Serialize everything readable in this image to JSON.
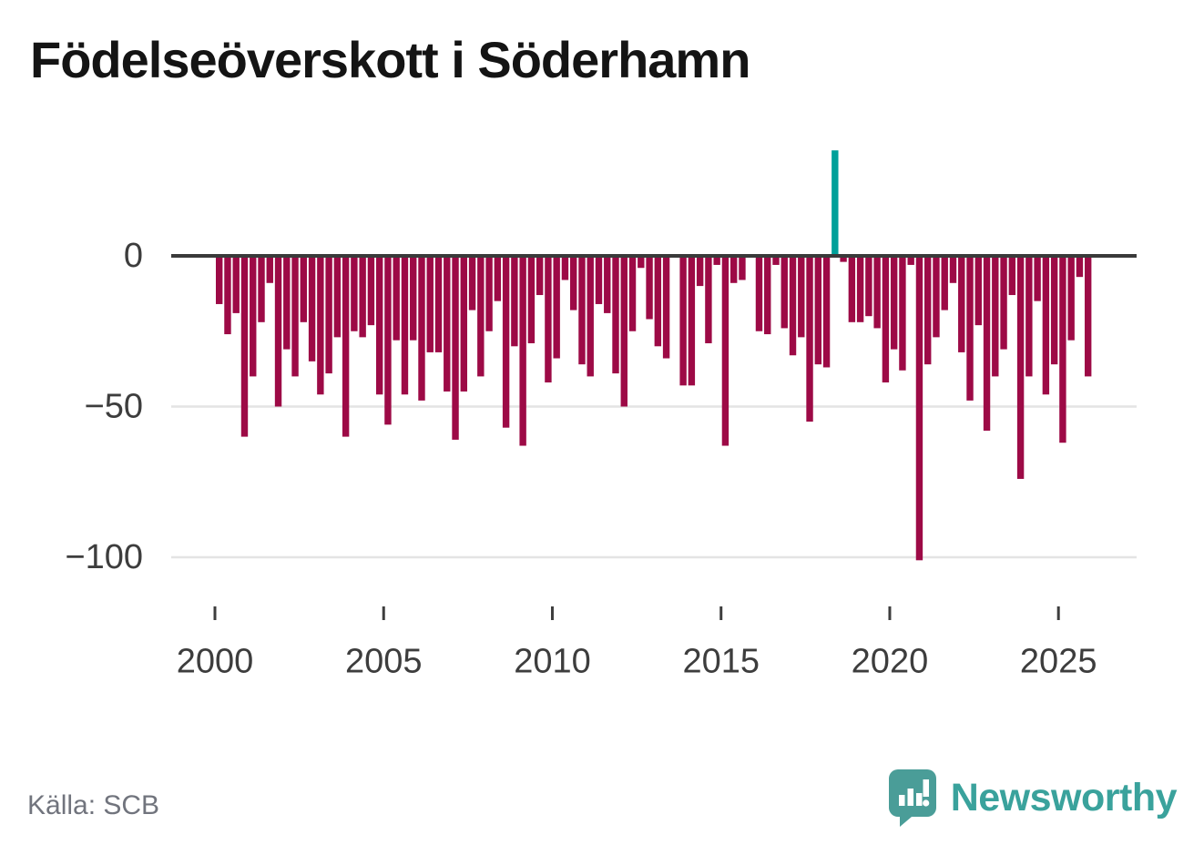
{
  "title": "Födelseöverskott i Söderhamn",
  "footer": {
    "source": "Källa: SCB",
    "brand": "Newsworthy"
  },
  "colors": {
    "bar_negative": "#9d0a46",
    "bar_positive": "#00a099",
    "axis_line": "#3a3a3a",
    "grid_line": "#e4e4e4",
    "tick_text": "#3d3d3d",
    "title_text": "#141414",
    "source_text": "#71747d",
    "brand_teal": "#3aa29c",
    "logo_teal": "#4a9d98"
  },
  "chart_data": {
    "type": "bar",
    "title": "Födelseöverskott i Söderhamn",
    "xlabel": "",
    "ylabel": "",
    "x_unit": "quarter",
    "ylim": [
      -110,
      40
    ],
    "grid": "horizontal",
    "legend": "none",
    "categories": [
      "2000Q1",
      "2000Q2",
      "2000Q3",
      "2000Q4",
      "2001Q1",
      "2001Q2",
      "2001Q3",
      "2001Q4",
      "2002Q1",
      "2002Q2",
      "2002Q3",
      "2002Q4",
      "2003Q1",
      "2003Q2",
      "2003Q3",
      "2003Q4",
      "2004Q1",
      "2004Q2",
      "2004Q3",
      "2004Q4",
      "2005Q1",
      "2005Q2",
      "2005Q3",
      "2005Q4",
      "2006Q1",
      "2006Q2",
      "2006Q3",
      "2006Q4",
      "2007Q1",
      "2007Q2",
      "2007Q3",
      "2007Q4",
      "2008Q1",
      "2008Q2",
      "2008Q3",
      "2008Q4",
      "2009Q1",
      "2009Q2",
      "2009Q3",
      "2009Q4",
      "2010Q1",
      "2010Q2",
      "2010Q3",
      "2010Q4",
      "2011Q1",
      "2011Q2",
      "2011Q3",
      "2011Q4",
      "2012Q1",
      "2012Q2",
      "2012Q3",
      "2012Q4",
      "2013Q1",
      "2013Q2",
      "2013Q3",
      "2013Q4",
      "2014Q1",
      "2014Q2",
      "2014Q3",
      "2014Q4",
      "2015Q1",
      "2015Q2",
      "2015Q3",
      "2015Q4",
      "2016Q1",
      "2016Q2",
      "2016Q3",
      "2016Q4",
      "2017Q1",
      "2017Q2",
      "2017Q3",
      "2017Q4",
      "2018Q1",
      "2018Q2",
      "2018Q3",
      "2018Q4",
      "2019Q1",
      "2019Q2",
      "2019Q3",
      "2019Q4",
      "2020Q1",
      "2020Q2",
      "2020Q3",
      "2020Q4",
      "2021Q1",
      "2021Q2",
      "2021Q3",
      "2021Q4",
      "2022Q1",
      "2022Q2",
      "2022Q3",
      "2022Q4",
      "2023Q1",
      "2023Q2",
      "2023Q3",
      "2023Q4",
      "2024Q1",
      "2024Q2",
      "2024Q3",
      "2024Q4",
      "2025Q1",
      "2025Q2",
      "2025Q3",
      "2025Q4"
    ],
    "values": [
      -16,
      -26,
      -19,
      -60,
      -40,
      -22,
      -9,
      -50,
      -31,
      -40,
      -22,
      -35,
      -46,
      -39,
      -27,
      -60,
      -25,
      -27,
      -23,
      -46,
      -56,
      -28,
      -46,
      -28,
      -48,
      -32,
      -32,
      -45,
      -61,
      -45,
      -18,
      -40,
      -25,
      -15,
      -57,
      -30,
      -63,
      -29,
      -13,
      -42,
      -34,
      -8,
      -18,
      -36,
      -40,
      -16,
      -19,
      -39,
      -50,
      -25,
      -4,
      -21,
      -30,
      -34,
      0,
      -43,
      -43,
      -10,
      -29,
      -3,
      -63,
      -9,
      -8,
      0,
      -25,
      -26,
      -3,
      -24,
      -33,
      -27,
      -55,
      -36,
      -37,
      35,
      -2,
      -22,
      -22,
      -20,
      -24,
      -42,
      -31,
      -38,
      -3,
      -101,
      -36,
      -27,
      -18,
      -9,
      -32,
      -48,
      -23,
      -58,
      -40,
      -31,
      -13,
      -74,
      -40,
      -15,
      -46,
      -36,
      -62,
      -28,
      -7,
      -40
    ],
    "yticks": [
      {
        "value": 0,
        "label": "0"
      },
      {
        "value": -50,
        "label": "−50"
      },
      {
        "value": -100,
        "label": "−100"
      }
    ],
    "xticks": [
      {
        "index": 0,
        "label": "2000"
      },
      {
        "index": 20,
        "label": "2005"
      },
      {
        "index": 40,
        "label": "2010"
      },
      {
        "index": 60,
        "label": "2015"
      },
      {
        "index": 80,
        "label": "2020"
      },
      {
        "index": 100,
        "label": "2025"
      }
    ]
  }
}
